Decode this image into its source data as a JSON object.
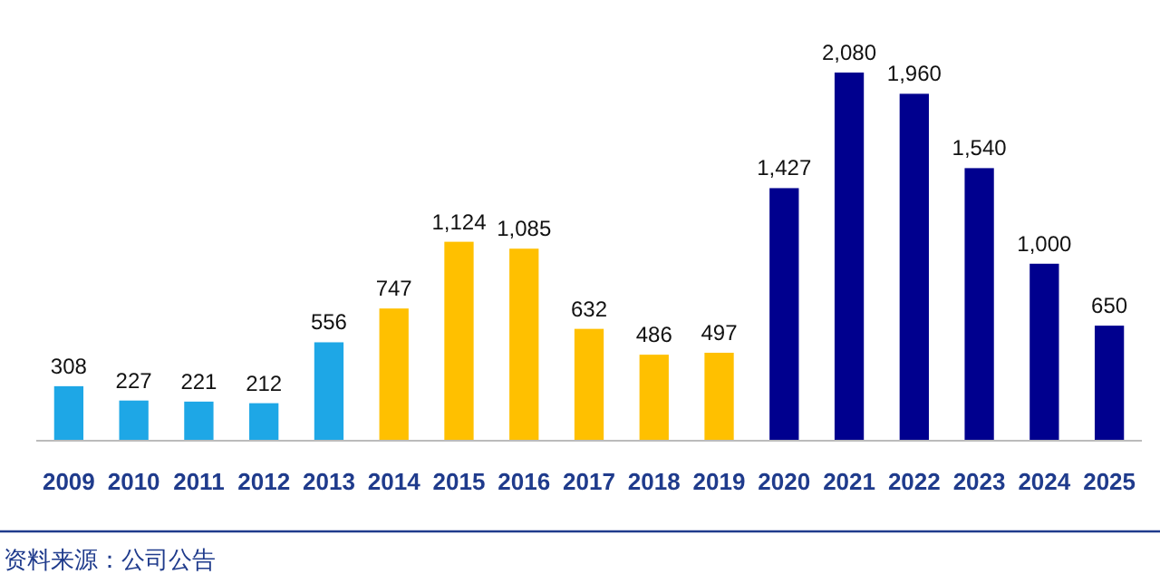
{
  "chart_data": {
    "type": "bar",
    "categories": [
      "2009",
      "2010",
      "2011",
      "2012",
      "2013",
      "2014",
      "2015",
      "2016",
      "2017",
      "2018",
      "2019",
      "2020",
      "2021",
      "2022",
      "2023",
      "2024",
      "2025"
    ],
    "values": [
      308,
      227,
      221,
      212,
      556,
      747,
      1124,
      1085,
      632,
      486,
      497,
      1427,
      2080,
      1960,
      1540,
      1000,
      650
    ],
    "colors": [
      "#1ea7e6",
      "#1ea7e6",
      "#1ea7e6",
      "#1ea7e6",
      "#1ea7e6",
      "#ffc000",
      "#ffc000",
      "#ffc000",
      "#ffc000",
      "#ffc000",
      "#ffc000",
      "#00008e",
      "#00008e",
      "#00008e",
      "#00008e",
      "#00008e",
      "#00008e"
    ],
    "value_labels": [
      "308",
      "227",
      "221",
      "212",
      "556",
      "747",
      "1,124",
      "1,085",
      "632",
      "486",
      "497",
      "1,427",
      "2,080",
      "1,960",
      "1,540",
      "1,000",
      "650"
    ],
    "annotations": [
      "资料来源：公司公告"
    ]
  }
}
